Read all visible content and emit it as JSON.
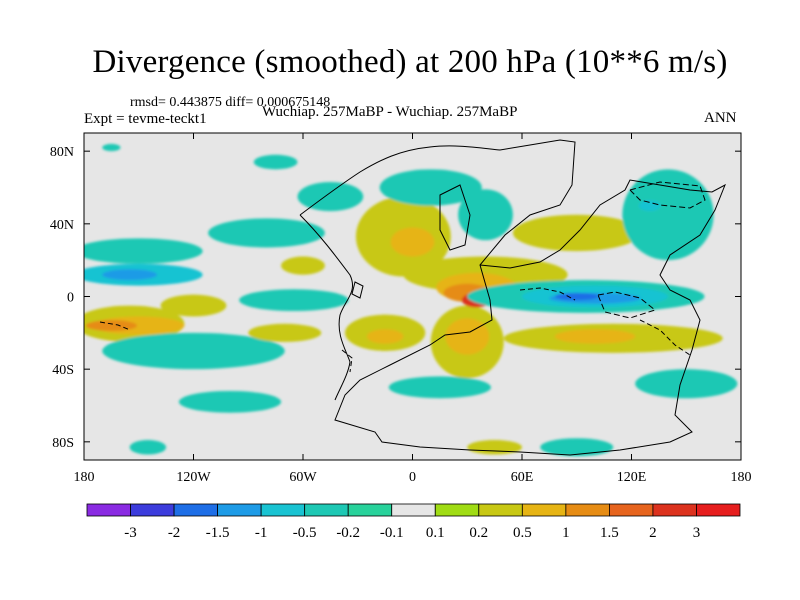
{
  "chart_data": {
    "type": "heatmap",
    "title": "Divergence (smoothed) at 200 hPa (10**6 m/s)",
    "stats_text": "rmsd= 0.443875 diff= 0.000675148",
    "left_label": "Expt = tevme-teckt1",
    "center_label": "Wuchiap. 257MaBP - Wuchiap. 257MaBP",
    "right_label": "ANN",
    "x_ticks": [
      {
        "value": -180,
        "label": "180"
      },
      {
        "value": -120,
        "label": "120W"
      },
      {
        "value": -60,
        "label": "60W"
      },
      {
        "value": 0,
        "label": "0"
      },
      {
        "value": 60,
        "label": "60E"
      },
      {
        "value": 120,
        "label": "120E"
      },
      {
        "value": 180,
        "label": "180"
      }
    ],
    "y_ticks": [
      {
        "value": 80,
        "label": "80N"
      },
      {
        "value": 40,
        "label": "40N"
      },
      {
        "value": 0,
        "label": "0"
      },
      {
        "value": -40,
        "label": "40S"
      },
      {
        "value": -80,
        "label": "80S"
      }
    ],
    "xlim": [
      -180,
      180
    ],
    "ylim": [
      -90,
      90
    ],
    "colorbar": {
      "levels": [
        "-3",
        "-2",
        "-1.5",
        "-1",
        "-0.5",
        "-0.2",
        "-0.1",
        "0.1",
        "0.2",
        "0.5",
        "1",
        "1.5",
        "2",
        "3"
      ],
      "colors": [
        "#8a2be2",
        "#3c3cdc",
        "#1e6ee6",
        "#1e9be6",
        "#19c3d2",
        "#1ec8b4",
        "#28d29b",
        "#e6e6e6",
        "#a0dc14",
        "#c8c814",
        "#e6b414",
        "#e68c14",
        "#e6641e",
        "#dc321e",
        "#e61e1e"
      ]
    },
    "blobs": [
      {
        "value": -0.3,
        "lon": -150,
        "lat": 25,
        "rx": 35,
        "ry": 7
      },
      {
        "value": -0.7,
        "lon": -150,
        "lat": 12,
        "rx": 35,
        "ry": 6
      },
      {
        "value": -1.2,
        "lon": -155,
        "lat": 12,
        "rx": 15,
        "ry": 3
      },
      {
        "value": 0.3,
        "lon": -155,
        "lat": -15,
        "rx": 30,
        "ry": 10
      },
      {
        "value": 0.6,
        "lon": -150,
        "lat": -16,
        "rx": 25,
        "ry": 5
      },
      {
        "value": 1.2,
        "lon": -165,
        "lat": -16,
        "rx": 14,
        "ry": 3
      },
      {
        "value": -0.3,
        "lon": -120,
        "lat": -30,
        "rx": 50,
        "ry": 10
      },
      {
        "value": -0.3,
        "lon": -100,
        "lat": -58,
        "rx": 28,
        "ry": 6
      },
      {
        "value": 0.3,
        "lon": -120,
        "lat": -5,
        "rx": 18,
        "ry": 6
      },
      {
        "value": 0.3,
        "lon": -60,
        "lat": 17,
        "rx": 12,
        "ry": 5
      },
      {
        "value": -0.3,
        "lon": -80,
        "lat": 35,
        "rx": 32,
        "ry": 8
      },
      {
        "value": -0.3,
        "lon": -65,
        "lat": -2,
        "rx": 30,
        "ry": 6
      },
      {
        "value": 0.3,
        "lon": -70,
        "lat": -20,
        "rx": 20,
        "ry": 5
      },
      {
        "value": -0.3,
        "lon": -45,
        "lat": 55,
        "rx": 18,
        "ry": 8
      },
      {
        "value": 0.3,
        "lon": -5,
        "lat": 33,
        "rx": 26,
        "ry": 22
      },
      {
        "value": 0.6,
        "lon": 0,
        "lat": 30,
        "rx": 12,
        "ry": 8
      },
      {
        "value": -0.3,
        "lon": 10,
        "lat": 60,
        "rx": 28,
        "ry": 10
      },
      {
        "value": 0.3,
        "lon": -15,
        "lat": -20,
        "rx": 22,
        "ry": 10
      },
      {
        "value": 0.6,
        "lon": -15,
        "lat": -22,
        "rx": 10,
        "ry": 4
      },
      {
        "value": 0.3,
        "lon": 30,
        "lat": -25,
        "rx": 20,
        "ry": 20
      },
      {
        "value": 0.6,
        "lon": 30,
        "lat": -22,
        "rx": 12,
        "ry": 10
      },
      {
        "value": -0.3,
        "lon": 40,
        "lat": 45,
        "rx": 15,
        "ry": 14
      },
      {
        "value": 0.3,
        "lon": 40,
        "lat": 12,
        "rx": 45,
        "ry": 10
      },
      {
        "value": 0.6,
        "lon": 35,
        "lat": 5,
        "rx": 22,
        "ry": 8
      },
      {
        "value": 1.2,
        "lon": 30,
        "lat": 2,
        "rx": 13,
        "ry": 5
      },
      {
        "value": 2.2,
        "lon": 35,
        "lat": -2,
        "rx": 8,
        "ry": 4
      },
      {
        "value": -0.3,
        "lon": 95,
        "lat": 0,
        "rx": 65,
        "ry": 9
      },
      {
        "value": -0.7,
        "lon": 100,
        "lat": 0,
        "rx": 40,
        "ry": 6
      },
      {
        "value": -1.2,
        "lon": 100,
        "lat": -1,
        "rx": 25,
        "ry": 3
      },
      {
        "value": -1.7,
        "lon": 90,
        "lat": 0,
        "rx": 12,
        "ry": 2
      },
      {
        "value": 0.3,
        "lon": 90,
        "lat": 35,
        "rx": 35,
        "ry": 10
      },
      {
        "value": -0.3,
        "lon": 140,
        "lat": 45,
        "rx": 25,
        "ry": 25
      },
      {
        "value": -0.7,
        "lon": 130,
        "lat": 50,
        "rx": 6,
        "ry": 3
      },
      {
        "value": 0.3,
        "lon": 110,
        "lat": -23,
        "rx": 60,
        "ry": 8
      },
      {
        "value": 0.6,
        "lon": 100,
        "lat": -22,
        "rx": 22,
        "ry": 4
      },
      {
        "value": -0.3,
        "lon": 150,
        "lat": -48,
        "rx": 28,
        "ry": 8
      },
      {
        "value": -0.3,
        "lon": 15,
        "lat": -50,
        "rx": 28,
        "ry": 6
      },
      {
        "value": -0.3,
        "lon": -75,
        "lat": 74,
        "rx": 12,
        "ry": 4
      },
      {
        "value": -0.3,
        "lon": -165,
        "lat": 82,
        "rx": 5,
        "ry": 2
      },
      {
        "value": -0.3,
        "lon": -145,
        "lat": -83,
        "rx": 10,
        "ry": 4
      },
      {
        "value": -0.3,
        "lon": 90,
        "lat": -83,
        "rx": 20,
        "ry": 5
      },
      {
        "value": 0.3,
        "lon": 45,
        "lat": -83,
        "rx": 15,
        "ry": 4
      }
    ]
  }
}
